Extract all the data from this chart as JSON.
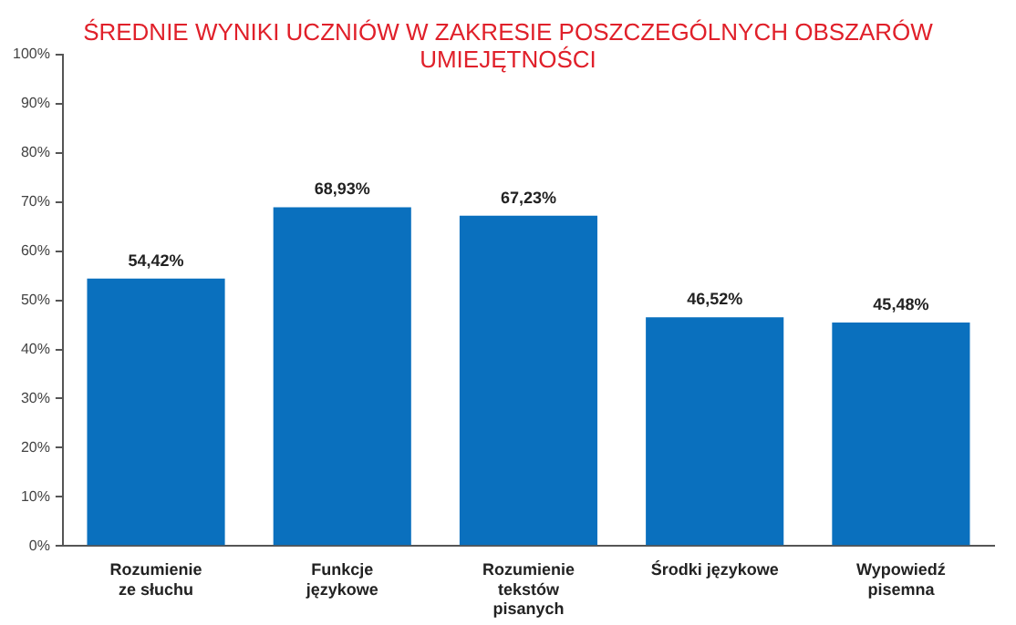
{
  "chart_data": {
    "type": "bar",
    "title": "ŚREDNIE WYNIKI UCZNIÓW W ZAKRESIE POSZCZEGÓLNYCH OBSZARÓW UMIEJĘTNOŚCI",
    "categories": [
      "Rozumienie\nze słuchu",
      "Funkcje\njęzykowe",
      "Rozumienie\ntekstów\npisanych",
      "Środki językowe",
      "Wypowiedź\npisemna"
    ],
    "values": [
      54.42,
      68.93,
      67.23,
      46.52,
      45.48
    ],
    "value_labels": [
      "54,42%",
      "68,93%",
      "67,23%",
      "46,52%",
      "45,48%"
    ],
    "color": "#0a70be",
    "ylim": [
      0,
      100
    ],
    "yticks": [
      {
        "value": 0,
        "label": "0%"
      },
      {
        "value": 10,
        "label": "10%"
      },
      {
        "value": 20,
        "label": "20%"
      },
      {
        "value": 30,
        "label": "30%"
      },
      {
        "value": 40,
        "label": "40%"
      },
      {
        "value": 50,
        "label": "50%"
      },
      {
        "value": 60,
        "label": "60%"
      },
      {
        "value": 70,
        "label": "70%"
      },
      {
        "value": 80,
        "label": "80%"
      },
      {
        "value": 90,
        "label": "90%"
      },
      {
        "value": 100,
        "label": "100%"
      }
    ],
    "grid": false,
    "legend": false
  }
}
